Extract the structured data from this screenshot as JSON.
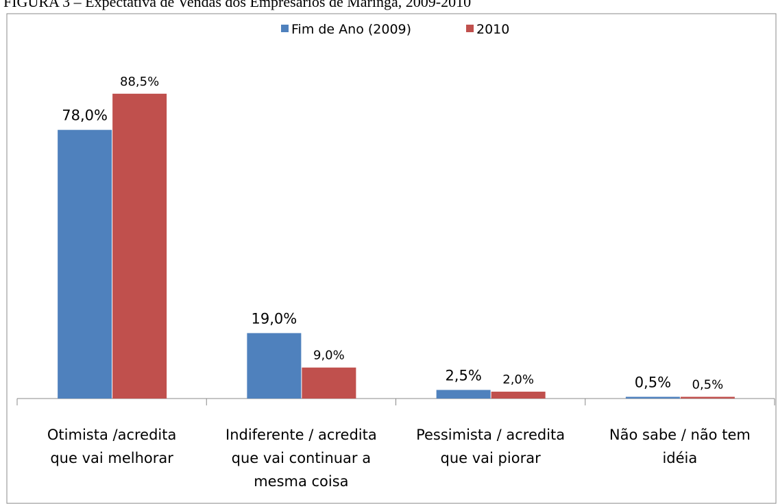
{
  "chart_data": {
    "type": "bar",
    "title": "FIGURA 3 – Expectativa de Vendas dos Empresários de Maringá, 2009-2010",
    "categories": [
      "Otimista  /acredita\nque vai melhorar",
      "Indiferente / acredita\nque vai continuar a\nmesma coisa",
      "Pessimista / acredita\nque vai piorar",
      "Não sabe / não tem\nidéia"
    ],
    "series": [
      {
        "name": "Fim de Ano (2009)",
        "color": "#4f81bd",
        "values": [
          78.0,
          19.0,
          2.5,
          0.5
        ],
        "value_labels": [
          "78,0%",
          "19,0%",
          "2,5%",
          "0,5%"
        ]
      },
      {
        "name": "2010",
        "color": "#c0504d",
        "values": [
          88.5,
          9.0,
          2.0,
          0.5
        ],
        "value_labels": [
          "88,5%",
          "9,0%",
          "2,0%",
          "0,5%"
        ]
      }
    ],
    "legend": "top"
  }
}
